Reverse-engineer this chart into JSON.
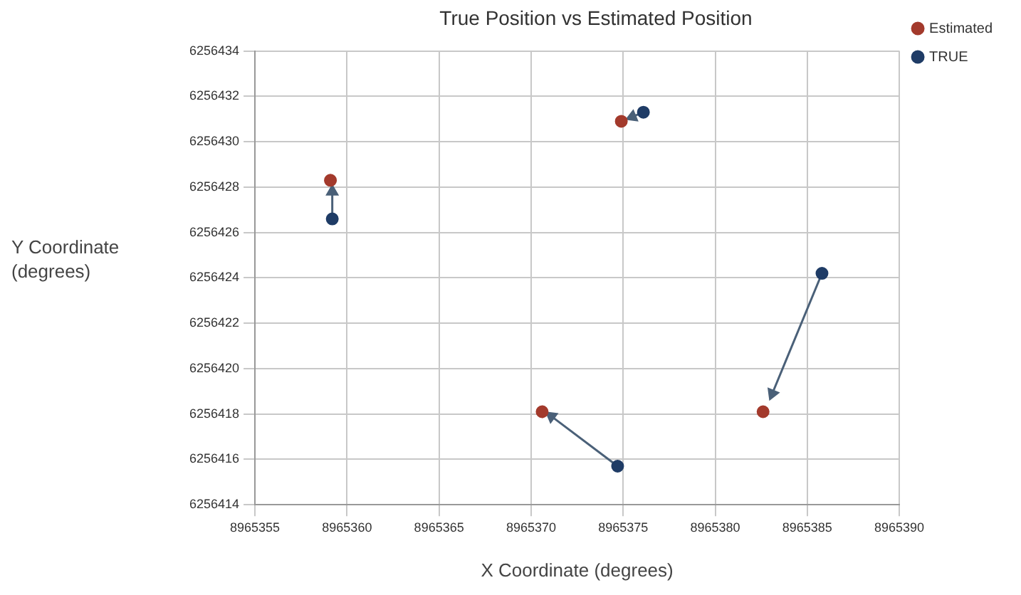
{
  "chart_data": {
    "type": "scatter",
    "title": "True Position vs Estimated Position",
    "xlabel": "X Coordinate (degrees)",
    "ylabel": "Y Coordinate (degrees)",
    "xlim": [
      8965355,
      8965390
    ],
    "xticks": [
      8965355,
      8965360,
      8965365,
      8965370,
      8965375,
      8965380,
      8965385,
      8965390
    ],
    "ylim": [
      6256414,
      6256434
    ],
    "yticks": [
      6256414,
      6256416,
      6256418,
      6256420,
      6256422,
      6256424,
      6256426,
      6256428,
      6256430,
      6256432,
      6256434
    ],
    "grid": true,
    "legend": "top right",
    "marker": "circle",
    "series": [
      {
        "name": "Estimated",
        "color": "#a33a2c",
        "x": [
          8965359.1,
          8965370.6,
          8965374.9,
          8965382.6
        ],
        "values": [
          6256428.3,
          6256418.1,
          6256430.9,
          6256418.1
        ]
      },
      {
        "name": "TRUE",
        "color": "#1f3c66",
        "x": [
          8965359.2,
          8965374.7,
          8965376.1,
          8965385.8
        ],
        "values": [
          6256426.6,
          6256415.7,
          6256431.3,
          6256424.2
        ]
      },
      {
        "type": "line",
        "color": "#4a6078",
        "marker": "triangle",
        "x": [
          8965359.2,
          8965359.2
        ],
        "values": [
          6256426.6,
          6256427.8
        ]
      },
      {
        "type": "line",
        "color": "#4a6078",
        "marker": "triangle",
        "x": [
          8965374.7,
          8965371.1
        ],
        "values": [
          6256415.7,
          6256417.9
        ]
      },
      {
        "type": "line",
        "color": "#4a6078",
        "marker": "triangle",
        "x": [
          8965376.1,
          8965375.5
        ],
        "values": [
          6256431.3,
          6256431.1
        ]
      },
      {
        "type": "line",
        "color": "#4a6078",
        "marker": "triangle",
        "x": [
          8965385.8,
          8965383.1
        ],
        "values": [
          6256424.2,
          6256418.9
        ]
      }
    ]
  }
}
